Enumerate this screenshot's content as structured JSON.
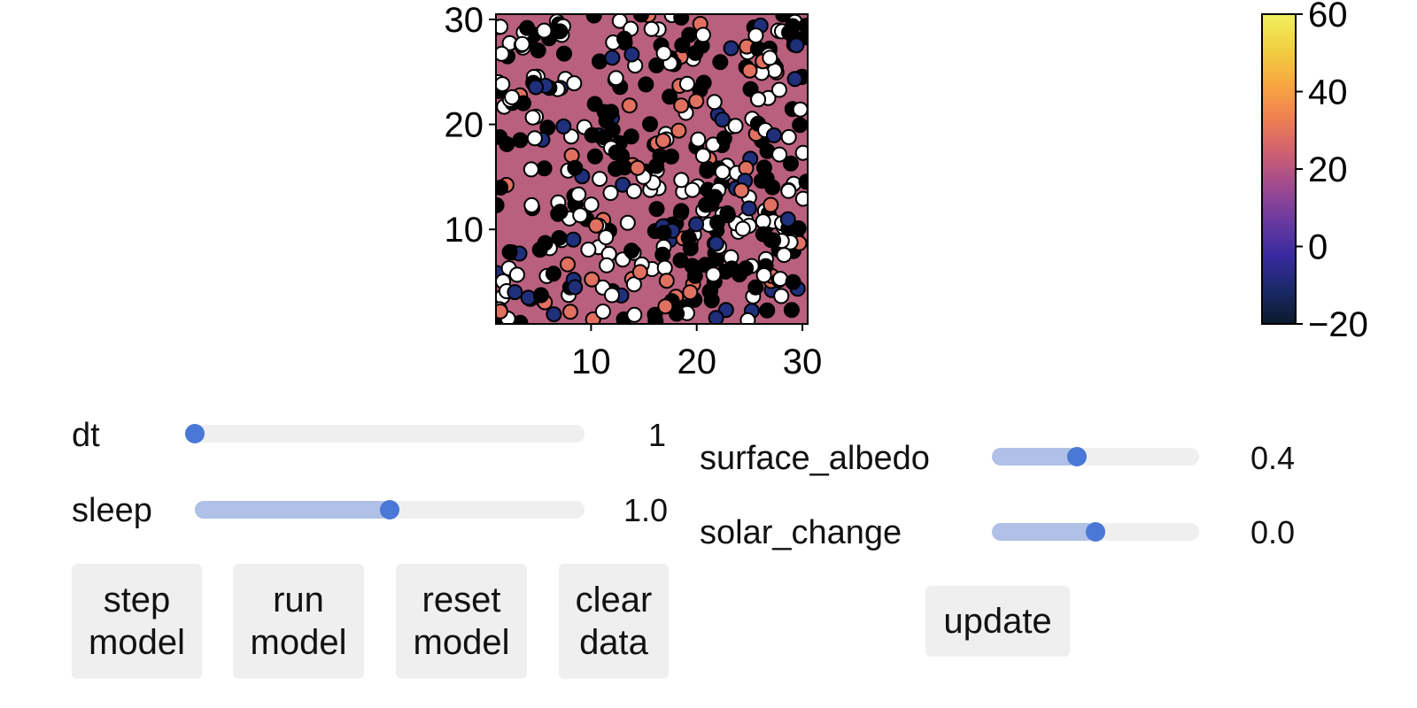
{
  "heatmap": {
    "xlim": [
      1,
      30.5
    ],
    "ylim": [
      1,
      30.5
    ],
    "xticks": [
      "10",
      "20",
      "30"
    ],
    "yticks": [
      "10",
      "20",
      "30"
    ],
    "background_color": "#b8607e",
    "daisy_colors": [
      "#000000",
      "#ffffff",
      "#1f2f7a",
      "#e07060"
    ]
  },
  "colorbar": {
    "range": [
      -20,
      60
    ],
    "ticks": [
      "60",
      "40",
      "20",
      "0",
      "−20"
    ],
    "tick_values": [
      60,
      40,
      20,
      0,
      -20
    ],
    "colormap": [
      "#0a1a2a",
      "#1a2a6a",
      "#3a2aa0",
      "#6a3aa0",
      "#a04a90",
      "#d06070",
      "#f08050",
      "#f8a840",
      "#f0d040",
      "#f0f060"
    ]
  },
  "sliders": {
    "dt": {
      "label": "dt",
      "value": "1",
      "fraction": 0.0
    },
    "sleep": {
      "label": "sleep",
      "value": "1.0",
      "fraction": 0.5
    },
    "surface_albedo": {
      "label": "surface_albedo",
      "value": "0.4",
      "fraction": 0.41
    },
    "solar_change": {
      "label": "solar_change",
      "value": "0.0",
      "fraction": 0.5
    }
  },
  "buttons": {
    "step_model": [
      "step",
      "model"
    ],
    "run_model": [
      "run",
      "model"
    ],
    "reset_model": [
      "reset",
      "model"
    ],
    "clear_data": [
      "clear",
      "data"
    ],
    "update": "update"
  }
}
